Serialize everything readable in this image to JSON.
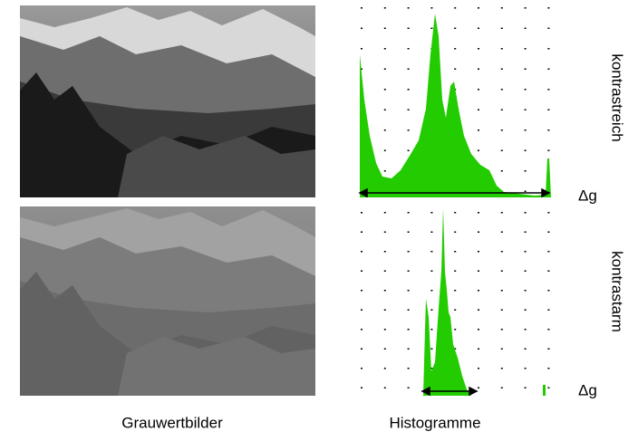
{
  "labels": {
    "high_contrast": "kontrastreich",
    "low_contrast": "kontrastarm",
    "delta_top": "Δg",
    "delta_bottom": "Δg"
  },
  "captions": {
    "images": "Grauwertbilder",
    "histograms": "Histogramme"
  }
}
